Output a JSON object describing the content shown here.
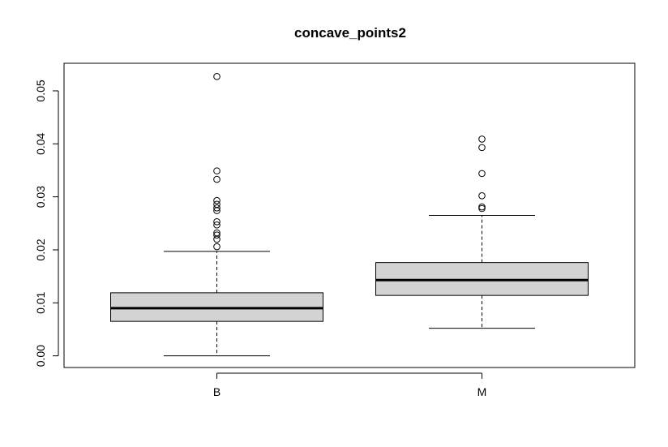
{
  "chart_data": {
    "type": "boxplot",
    "title": "concave_points2",
    "xlabel": "",
    "ylabel": "",
    "ylim": [
      -0.0022,
      0.0552
    ],
    "yticks": [
      0.0,
      0.01,
      0.02,
      0.03,
      0.04,
      0.05
    ],
    "ytick_labels": [
      "0.00",
      "0.01",
      "0.02",
      "0.03",
      "0.04",
      "0.05"
    ],
    "categories": [
      "B",
      "M"
    ],
    "box_fill": "#d3d3d3",
    "grid": false,
    "boxes": [
      {
        "name": "B",
        "whisker_low": 0.0,
        "q1": 0.0065,
        "median": 0.009,
        "q3": 0.0119,
        "whisker_high": 0.0197,
        "outliers": [
          0.0527,
          0.0349,
          0.0333,
          0.0293,
          0.0286,
          0.0279,
          0.0274,
          0.0253,
          0.0247,
          0.0232,
          0.0228,
          0.022,
          0.0206
        ]
      },
      {
        "name": "M",
        "whisker_low": 0.0052,
        "q1": 0.0114,
        "median": 0.0143,
        "q3": 0.0176,
        "whisker_high": 0.0265,
        "outliers": [
          0.0409,
          0.0393,
          0.0344,
          0.0302,
          0.0281,
          0.0278
        ]
      }
    ]
  }
}
